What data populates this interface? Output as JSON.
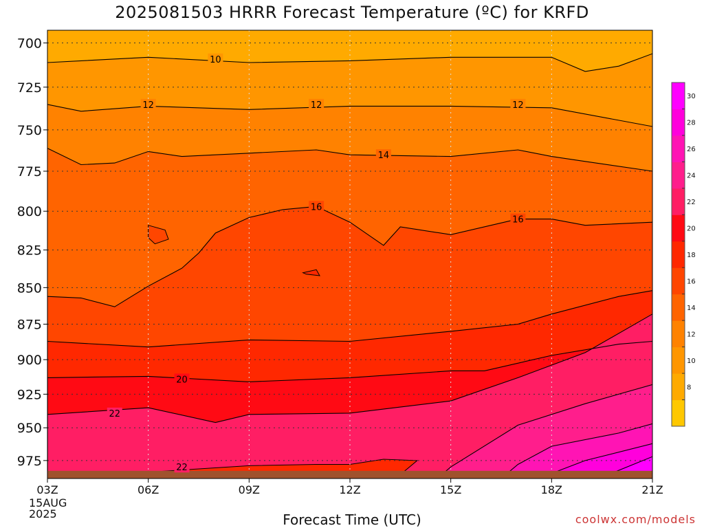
{
  "title": "2025081503 HRRR Forecast Temperature (ºC) for KRFD",
  "xlabel": "Forecast Time (UTC)",
  "credit": "coolwx.com/models",
  "date_line1": "15AUG",
  "date_line2": "2025",
  "colors": {
    "frame": "#000000",
    "ground": "#a0522d",
    "grid": "#888888"
  },
  "chart_data": {
    "type": "heatmap",
    "title": "2025081503 HRRR Forecast Temperature (ºC) for KRFD",
    "xlabel": "Forecast Time (UTC)",
    "ylabel": "",
    "x_ticks": [
      "03Z",
      "06Z",
      "09Z",
      "12Z",
      "15Z",
      "18Z",
      "21Z"
    ],
    "x_hours": [
      3,
      6,
      9,
      12,
      15,
      18,
      21
    ],
    "xlim": [
      3,
      21
    ],
    "y_ticks": [
      700,
      725,
      750,
      775,
      800,
      825,
      850,
      875,
      900,
      925,
      950,
      975
    ],
    "ylim_hpa": [
      693,
      989
    ],
    "surface_pressure_hpa": 983,
    "grid": true,
    "colorbar": {
      "ticks": [
        8,
        10,
        12,
        14,
        16,
        18,
        20,
        22,
        24,
        26,
        28,
        30
      ],
      "levels": [
        {
          "min": 6,
          "color": "#ffc800"
        },
        {
          "min": 8,
          "color": "#ffaa00"
        },
        {
          "min": 10,
          "color": "#ff9600"
        },
        {
          "min": 12,
          "color": "#ff8200"
        },
        {
          "min": 14,
          "color": "#ff6400"
        },
        {
          "min": 16,
          "color": "#ff4600"
        },
        {
          "min": 18,
          "color": "#ff2800"
        },
        {
          "min": 20,
          "color": "#ff0a14"
        },
        {
          "min": 22,
          "color": "#ff1e64"
        },
        {
          "min": 24,
          "color": "#ff1e8c"
        },
        {
          "min": 26,
          "color": "#ff14b4"
        },
        {
          "min": 28,
          "color": "#ff00dc"
        },
        {
          "min": 30,
          "color": "#ff00ff"
        }
      ]
    },
    "series": [
      {
        "value": 10,
        "color": "#ff9600",
        "points": [
          [
            3,
            711
          ],
          [
            6,
            708
          ],
          [
            9,
            711
          ],
          [
            12,
            710
          ],
          [
            15,
            708
          ],
          [
            18,
            708
          ],
          [
            19,
            716
          ],
          [
            20,
            713
          ],
          [
            21,
            706
          ]
        ]
      },
      {
        "value": 12,
        "color": "#ff8200",
        "points": [
          [
            3,
            735
          ],
          [
            4,
            739
          ],
          [
            6,
            736
          ],
          [
            9,
            738
          ],
          [
            12,
            736
          ],
          [
            15,
            736
          ],
          [
            18,
            737
          ],
          [
            21,
            748
          ]
        ]
      },
      {
        "value": 14,
        "color": "#ff6400",
        "points": [
          [
            3,
            761
          ],
          [
            4,
            771
          ],
          [
            5,
            770
          ],
          [
            6,
            763
          ],
          [
            7,
            766
          ],
          [
            9,
            764
          ],
          [
            11,
            762
          ],
          [
            12,
            765
          ],
          [
            15,
            766
          ],
          [
            17,
            762
          ],
          [
            18,
            766
          ],
          [
            19,
            769
          ],
          [
            21,
            775
          ]
        ]
      },
      {
        "value": 16,
        "color": "#ff4600",
        "points": [
          [
            3,
            989
          ],
          [
            3,
            856
          ],
          [
            4,
            857
          ],
          [
            5,
            863
          ],
          [
            6,
            849
          ],
          [
            7,
            837
          ],
          [
            7.5,
            827
          ],
          [
            8,
            814
          ],
          [
            9,
            804
          ],
          [
            10,
            799
          ],
          [
            11,
            797
          ],
          [
            12,
            807
          ],
          [
            13,
            822
          ],
          [
            13.5,
            810
          ],
          [
            15,
            815
          ],
          [
            17,
            805
          ],
          [
            18,
            805
          ],
          [
            19,
            809
          ],
          [
            21,
            807
          ]
        ]
      },
      {
        "value": 18,
        "color": "#ff2800",
        "points": [
          [
            3,
            989
          ],
          [
            3,
            887
          ],
          [
            6,
            891
          ],
          [
            9,
            886
          ],
          [
            12,
            887
          ],
          [
            15,
            880
          ],
          [
            17,
            875
          ],
          [
            18,
            868
          ],
          [
            20,
            856
          ],
          [
            21,
            852
          ]
        ]
      },
      {
        "value": 20,
        "color": "#ff0a14",
        "points": [
          [
            3,
            989
          ],
          [
            3,
            913
          ],
          [
            6,
            912
          ],
          [
            9,
            916
          ],
          [
            12,
            913
          ],
          [
            15,
            908
          ],
          [
            16,
            908
          ],
          [
            18,
            897
          ],
          [
            20,
            889
          ],
          [
            21,
            887
          ]
        ]
      },
      {
        "value": 22,
        "color": "#ff1e64",
        "points": [
          [
            3,
            989
          ],
          [
            3,
            940
          ],
          [
            6,
            935
          ],
          [
            8,
            946
          ],
          [
            9,
            940
          ],
          [
            12,
            939
          ],
          [
            15,
            930
          ],
          [
            17,
            913
          ],
          [
            19,
            895
          ],
          [
            21,
            868
          ]
        ]
      },
      {
        "value": 24,
        "color": "#ff1e8c",
        "points": [
          [
            14.6,
            989
          ],
          [
            15,
            980
          ],
          [
            17,
            948
          ],
          [
            19,
            932
          ],
          [
            21,
            918
          ]
        ]
      },
      {
        "value": 26,
        "color": "#ff14b4",
        "points": [
          [
            16.5,
            989
          ],
          [
            17,
            978
          ],
          [
            18,
            964
          ],
          [
            20,
            954
          ],
          [
            21,
            947
          ]
        ]
      },
      {
        "value": 28,
        "color": "#ff00dc",
        "points": [
          [
            17.5,
            989
          ],
          [
            18,
            985
          ],
          [
            19,
            975
          ],
          [
            21,
            962
          ]
        ]
      },
      {
        "value": 30,
        "color": "#ff00ff",
        "points": [
          [
            19.4,
            989
          ],
          [
            21,
            972
          ]
        ]
      }
    ],
    "islands": [
      {
        "color": "#ff2800",
        "points": [
          [
            3.6,
            989
          ],
          [
            6,
            984
          ],
          [
            9,
            979
          ],
          [
            11,
            978
          ],
          [
            12,
            978
          ],
          [
            13,
            974
          ],
          [
            14,
            975
          ],
          [
            13.5,
            986
          ],
          [
            12.5,
            989
          ]
        ]
      },
      {
        "color": "#ff4600",
        "points": [
          [
            6,
            809
          ],
          [
            6.5,
            812
          ],
          [
            6.6,
            818
          ],
          [
            6.2,
            821
          ],
          [
            6.0,
            817
          ]
        ]
      },
      {
        "color": "#ff2800",
        "points": [
          [
            10.6,
            840
          ],
          [
            11.0,
            838
          ],
          [
            11.1,
            842
          ],
          [
            10.7,
            841
          ]
        ]
      }
    ],
    "contour_labels": [
      {
        "text": "10",
        "x": 8,
        "y": 709
      },
      {
        "text": "12",
        "x": 6,
        "y": 735
      },
      {
        "text": "12",
        "x": 11,
        "y": 735
      },
      {
        "text": "12",
        "x": 17,
        "y": 735
      },
      {
        "text": "14",
        "x": 13,
        "y": 765
      },
      {
        "text": "16",
        "x": 11,
        "y": 797
      },
      {
        "text": "16",
        "x": 17,
        "y": 805
      },
      {
        "text": "20",
        "x": 7,
        "y": 914
      },
      {
        "text": "22",
        "x": 5,
        "y": 939
      },
      {
        "text": "22",
        "x": 7,
        "y": 980
      }
    ]
  }
}
